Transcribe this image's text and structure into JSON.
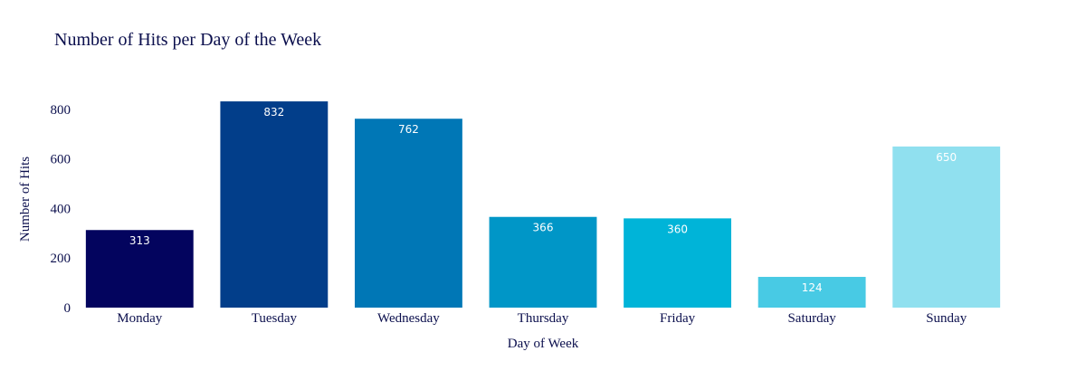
{
  "chart_data": {
    "type": "bar",
    "title": "Number of Hits per Day of the Week",
    "xlabel": "Day of Week",
    "ylabel": "Number of Hits",
    "categories": [
      "Monday",
      "Tuesday",
      "Wednesday",
      "Thursday",
      "Friday",
      "Saturday",
      "Sunday"
    ],
    "values": [
      313,
      832,
      762,
      366,
      360,
      124,
      650
    ],
    "data_labels": [
      "313",
      "832",
      "762",
      "366",
      "360",
      "124",
      "650"
    ],
    "colors": [
      "#03045e",
      "#023e8a",
      "#0077b6",
      "#0096c7",
      "#00b4d8",
      "#48cae4",
      "#90e0ef"
    ],
    "yticks": [
      0,
      200,
      400,
      600,
      800
    ],
    "ytick_labels": [
      "0",
      "200",
      "400",
      "600",
      "800"
    ],
    "ylim": [
      0,
      876
    ],
    "grid": false,
    "legend": "none"
  }
}
